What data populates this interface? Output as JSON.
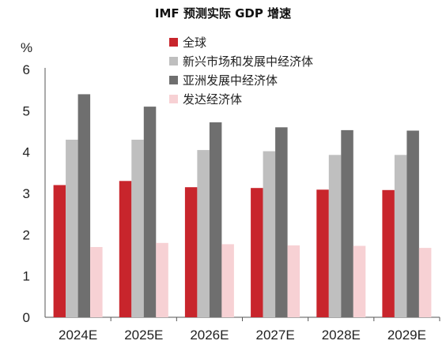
{
  "chart_data": {
    "type": "bar",
    "title": "IMF 预测实际 GDP 增速",
    "ylabel": "%",
    "xlabel": "",
    "ylim": [
      0,
      6
    ],
    "yticks": [
      0,
      1,
      2,
      3,
      4,
      5,
      6
    ],
    "grid": false,
    "legend_position": "top",
    "categories": [
      "2024E",
      "2025E",
      "2026E",
      "2027E",
      "2028E",
      "2029E"
    ],
    "series": [
      {
        "name": "全球",
        "color": "#c8252c",
        "values": [
          3.2,
          3.3,
          3.15,
          3.13,
          3.09,
          3.08
        ]
      },
      {
        "name": "新兴市场和发展中经济体",
        "color": "#bfbfbf",
        "values": [
          4.3,
          4.3,
          4.05,
          4.02,
          3.93,
          3.93
        ]
      },
      {
        "name": "亚洲发展中经济体",
        "color": "#6f6f6f",
        "values": [
          5.4,
          5.1,
          4.72,
          4.6,
          4.53,
          4.52
        ]
      },
      {
        "name": "发达经济体",
        "color": "#f7d1d4",
        "values": [
          1.7,
          1.8,
          1.77,
          1.74,
          1.73,
          1.68
        ]
      }
    ]
  }
}
